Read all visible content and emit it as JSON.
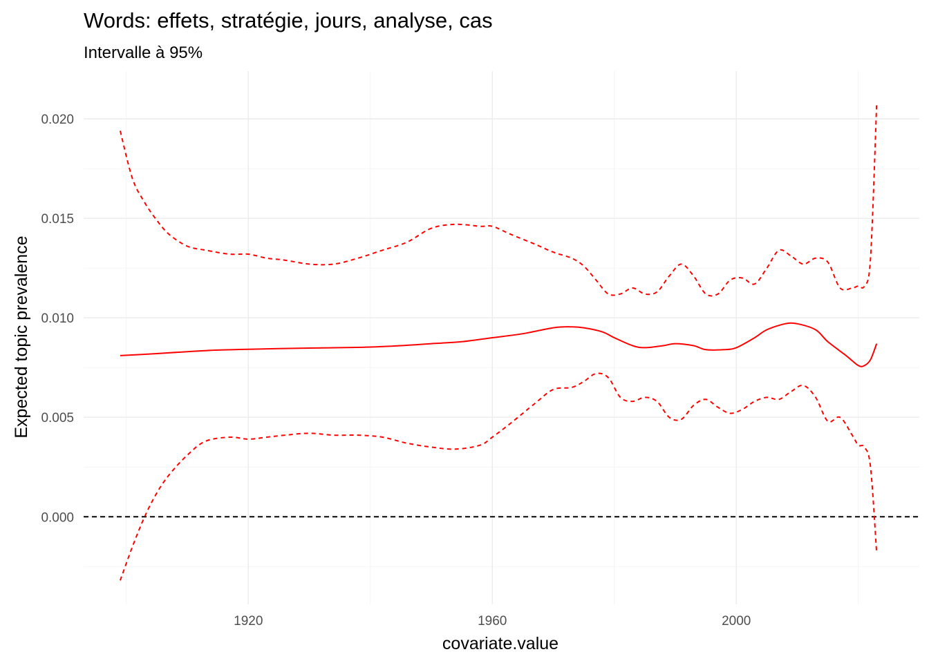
{
  "chart_data": {
    "type": "line",
    "title": "Words: effets, stratégie, jours, analyse, cas",
    "subtitle": "Intervalle à 95%",
    "xlabel": "covariate.value",
    "ylabel": "Expected topic prevalence",
    "xlim": [
      1893,
      2030
    ],
    "ylim": [
      -0.0044,
      0.0224
    ],
    "x_ticks": [
      1920,
      1960,
      2000
    ],
    "x_tick_labels": [
      "1920",
      "1960",
      "2000"
    ],
    "y_ticks": [
      0.0,
      0.005,
      0.01,
      0.015,
      0.02
    ],
    "y_tick_labels": [
      "0.000",
      "0.005",
      "0.010",
      "0.015",
      "0.020"
    ],
    "grid": true,
    "colors": {
      "series": "#ff0000",
      "reference": "#000000"
    },
    "series": [
      {
        "role": "estimate",
        "style": "solid",
        "x": [
          1899,
          1905,
          1910,
          1915,
          1920,
          1925,
          1930,
          1935,
          1940,
          1945,
          1950,
          1955,
          1960,
          1965,
          1970,
          1973,
          1975,
          1978,
          1980,
          1983,
          1985,
          1988,
          1990,
          1993,
          1995,
          1998,
          2000,
          2003,
          2005,
          2008,
          2010,
          2013,
          2015,
          2018,
          2020,
          2021,
          2022,
          2023
        ],
        "y": [
          0.0081,
          0.0082,
          0.0083,
          0.00838,
          0.00842,
          0.00845,
          0.00848,
          0.0085,
          0.00853,
          0.0086,
          0.0087,
          0.0088,
          0.009,
          0.0092,
          0.0095,
          0.00955,
          0.0095,
          0.0093,
          0.009,
          0.0086,
          0.0085,
          0.0086,
          0.0087,
          0.0086,
          0.0084,
          0.0084,
          0.0085,
          0.009,
          0.0094,
          0.0097,
          0.0097,
          0.0094,
          0.0088,
          0.0081,
          0.0076,
          0.0076,
          0.0079,
          0.0087
        ]
      },
      {
        "role": "upper 95%",
        "style": "dashed",
        "x": [
          1899,
          1901,
          1903,
          1905,
          1907,
          1910,
          1913,
          1917,
          1920,
          1923,
          1926,
          1930,
          1934,
          1938,
          1942,
          1946,
          1950,
          1954,
          1958,
          1960,
          1963,
          1967,
          1970,
          1973,
          1975,
          1977,
          1979,
          1981,
          1983,
          1985,
          1987,
          1989,
          1991,
          1993,
          1995,
          1997,
          1999,
          2001,
          2003,
          2005,
          2007,
          2009,
          2011,
          2013,
          2015,
          2017,
          2019,
          2020,
          2021,
          2022,
          2023
        ],
        "y": [
          0.0194,
          0.017,
          0.0158,
          0.0149,
          0.0142,
          0.0136,
          0.0134,
          0.0132,
          0.0132,
          0.013,
          0.0129,
          0.0127,
          0.0127,
          0.013,
          0.0134,
          0.0138,
          0.0145,
          0.0147,
          0.0146,
          0.0146,
          0.0142,
          0.0137,
          0.0133,
          0.013,
          0.0126,
          0.0119,
          0.0112,
          0.0112,
          0.0115,
          0.0112,
          0.0113,
          0.0121,
          0.0127,
          0.0121,
          0.0112,
          0.0112,
          0.0119,
          0.012,
          0.0117,
          0.0125,
          0.0134,
          0.0131,
          0.0127,
          0.013,
          0.0128,
          0.0115,
          0.0115,
          0.0116,
          0.0116,
          0.013,
          0.0207
        ]
      },
      {
        "role": "lower 95%",
        "style": "dashed",
        "x": [
          1899,
          1901,
          1903,
          1905,
          1907,
          1910,
          1913,
          1917,
          1920,
          1923,
          1926,
          1930,
          1934,
          1938,
          1942,
          1946,
          1950,
          1954,
          1958,
          1960,
          1963,
          1967,
          1970,
          1973,
          1975,
          1977,
          1979,
          1981,
          1983,
          1985,
          1987,
          1989,
          1991,
          1993,
          1995,
          1997,
          1999,
          2001,
          2003,
          2005,
          2007,
          2009,
          2011,
          2013,
          2015,
          2017,
          2019,
          2020,
          2021,
          2022,
          2023
        ],
        "y": [
          -0.0032,
          -0.0015,
          0.0,
          0.0012,
          0.0021,
          0.0031,
          0.0038,
          0.004,
          0.0039,
          0.004,
          0.0041,
          0.0042,
          0.0041,
          0.0041,
          0.004,
          0.0037,
          0.0035,
          0.0034,
          0.0036,
          0.004,
          0.0047,
          0.0057,
          0.0064,
          0.0065,
          0.0068,
          0.0072,
          0.007,
          0.006,
          0.0058,
          0.006,
          0.0058,
          0.005,
          0.0049,
          0.0056,
          0.0059,
          0.0055,
          0.0052,
          0.0054,
          0.0058,
          0.006,
          0.0059,
          0.0063,
          0.0066,
          0.006,
          0.0048,
          0.005,
          0.0041,
          0.0036,
          0.0035,
          0.0025,
          -0.0018
        ]
      }
    ],
    "reference_line": {
      "y": 0.0,
      "style": "dashed",
      "color": "#000000"
    }
  }
}
